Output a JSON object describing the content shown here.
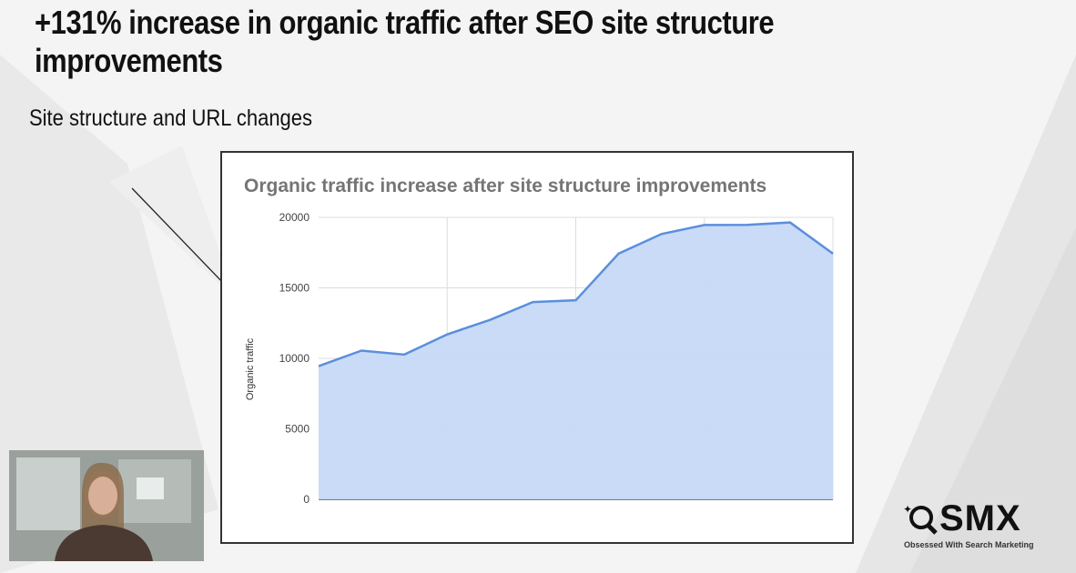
{
  "slide": {
    "title": "+131% increase in organic traffic after SEO site structure improvements",
    "subtitle": "Site structure and URL changes"
  },
  "logo": {
    "name": "SMX",
    "tagline": "Obsessed With Search Marketing"
  },
  "chart_data": {
    "type": "area",
    "title": "Organic traffic increase after site structure improvements",
    "xlabel": "",
    "ylabel": "Organic traffic",
    "ylim": [
      0,
      20000
    ],
    "yticks": [
      "0",
      "5000",
      "10000",
      "15000",
      "20000"
    ],
    "grid": true,
    "x": [
      1,
      2,
      3,
      4,
      5,
      6,
      7,
      8,
      9,
      10,
      11,
      12,
      13
    ],
    "values": [
      9450,
      10550,
      10270,
      11700,
      12730,
      13990,
      14120,
      17430,
      18820,
      19460,
      19470,
      19640,
      17430
    ],
    "colors": {
      "line": "#5b8fdc",
      "fill": "#c6d9f7"
    }
  }
}
